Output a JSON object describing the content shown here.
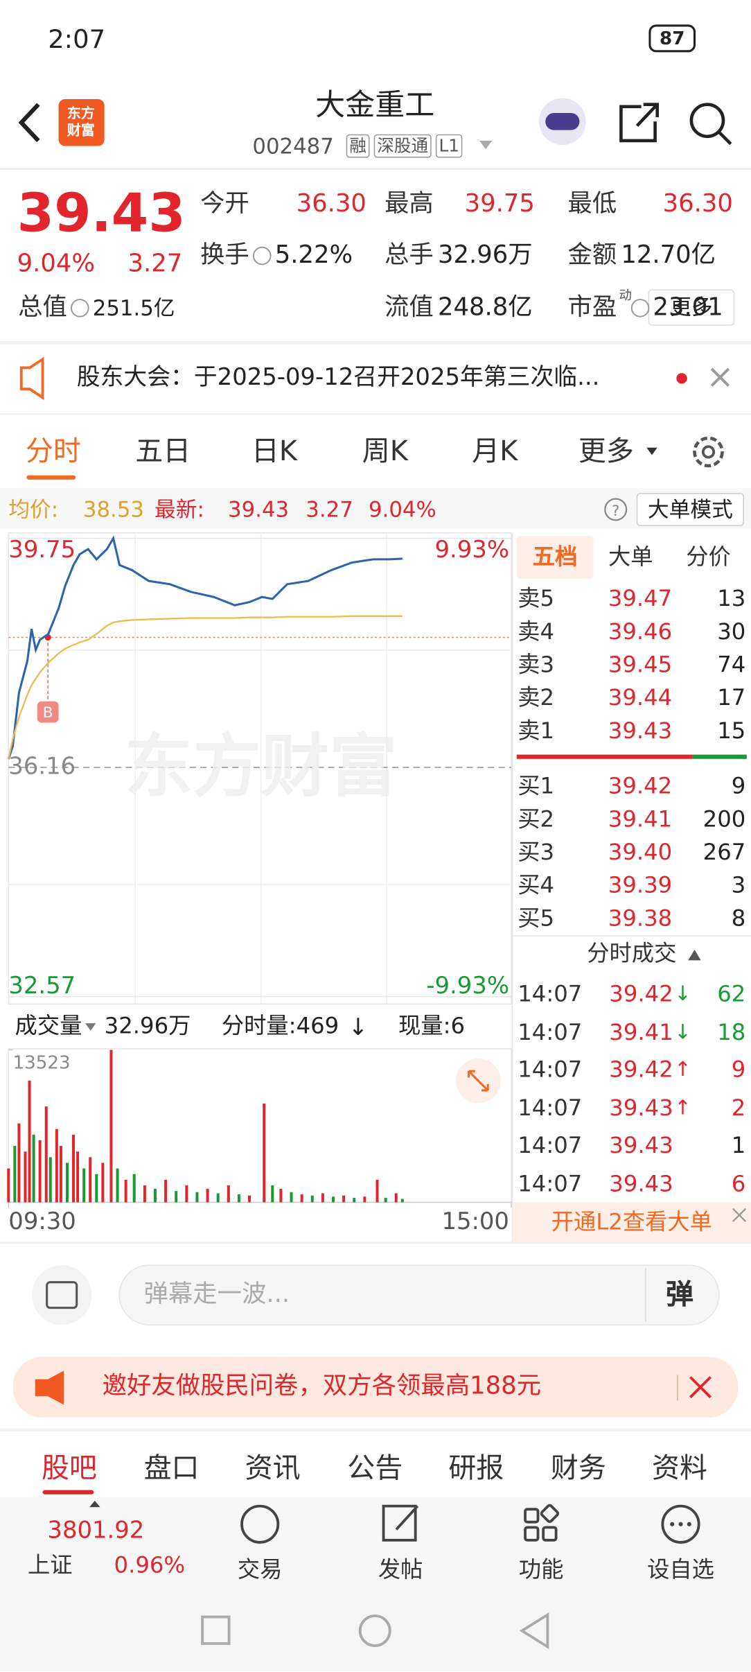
{
  "status_bar": {
    "time": "2:07",
    "battery": "87"
  },
  "header": {
    "logo": "东方财富",
    "title": "大金重工",
    "code": "002487",
    "badges": [
      "融",
      "深股通",
      "L1"
    ]
  },
  "quote": {
    "price": "39.43",
    "change_pct": "9.04%",
    "change": "3.27",
    "stats": [
      {
        "label": "今开",
        "value": "36.30"
      },
      {
        "label": "最高",
        "value": "39.75"
      },
      {
        "label": "最低",
        "value": "36.30"
      },
      {
        "label": "换手",
        "value": "5.22%"
      },
      {
        "label": "总手",
        "value": "32.96万"
      },
      {
        "label": "金额",
        "value": "12.70亿"
      },
      {
        "label": "总值",
        "value": "251.5亿"
      },
      {
        "label": "流值",
        "value": "248.8亿"
      },
      {
        "label": "市盈",
        "label_sup": "动",
        "value": "23.01"
      }
    ],
    "more": "更多"
  },
  "notice": {
    "text": "股东大会：于2025-09-12召开2025年第三次临..."
  },
  "tabs": [
    "分时",
    "五日",
    "日K",
    "周K",
    "月K",
    "更多"
  ],
  "info_bar": {
    "avg_label": "均价:",
    "avg": "38.53",
    "latest_label": "最新:",
    "latest": "39.43",
    "change": "3.27",
    "change_pct": "9.04%",
    "mode_button": "大单模式"
  },
  "watermark": "东方财富",
  "chart_data": [
    {
      "type": "line",
      "x": [
        0,
        2,
        5,
        9,
        11,
        13,
        15,
        19,
        24,
        27,
        31,
        34,
        38,
        42,
        47,
        50,
        53,
        59,
        67,
        77,
        87,
        98,
        108,
        115,
        121,
        126,
        133,
        143,
        154,
        164,
        174,
        182,
        188
      ],
      "xlim": [
        0,
        240
      ],
      "xticks": [
        {
          "value": 0,
          "label": "09:30"
        },
        {
          "value": 240,
          "label": "15:00"
        }
      ],
      "ylim": [
        32.57,
        39.75
      ],
      "yticks": [
        32.57,
        36.16,
        39.75
      ],
      "y2lim": [
        -9.93,
        9.93
      ],
      "y2ticks": [
        {
          "value": -9.93,
          "label": "-9.93%"
        },
        {
          "value": 9.93,
          "label": "9.93%"
        }
      ],
      "series": [
        {
          "color": "#2d64ad",
          "values": [
            36.29,
            36.49,
            37.33,
            37.83,
            38.33,
            38.0,
            38.16,
            38.25,
            38.66,
            39.0,
            39.33,
            39.5,
            39.58,
            39.42,
            39.58,
            39.75,
            39.33,
            39.25,
            39.08,
            39.03,
            38.91,
            38.83,
            38.7,
            38.75,
            38.83,
            38.8,
            39.03,
            39.08,
            39.25,
            39.37,
            39.42,
            39.42,
            39.43
          ]
        },
        {
          "color": "#eebb4d",
          "values": [
            36.29,
            36.6,
            36.95,
            37.3,
            37.45,
            37.55,
            37.65,
            37.8,
            37.95,
            38.02,
            38.08,
            38.12,
            38.16,
            38.25,
            38.38,
            38.43,
            38.45,
            38.47,
            38.48,
            38.49,
            38.5,
            38.5,
            38.5,
            38.51,
            38.51,
            38.51,
            38.52,
            38.52,
            38.52,
            38.53,
            38.53,
            38.53,
            38.53
          ]
        }
      ]
    },
    {
      "type": "bar",
      "x": [
        0,
        3,
        5,
        8,
        10,
        12,
        15,
        18,
        20,
        23,
        25,
        28,
        31,
        33,
        36,
        39,
        42,
        45,
        49,
        52,
        56,
        60,
        65,
        70,
        75,
        80,
        85,
        90,
        95,
        100,
        105,
        110,
        115,
        122,
        126,
        130,
        135,
        140,
        145,
        150,
        155,
        160,
        165,
        170,
        176,
        180,
        185,
        188
      ],
      "xlim": [
        0,
        240
      ],
      "ylim": [
        0,
        13523
      ],
      "yticks": [
        13523
      ],
      "values": [
        3000,
        5000,
        7000,
        4500,
        10800,
        6000,
        5500,
        8500,
        4000,
        6500,
        5000,
        3500,
        6000,
        4500,
        3000,
        4000,
        2500,
        3500,
        13523,
        3000,
        2000,
        2500,
        1500,
        1200,
        2000,
        1000,
        1500,
        900,
        1200,
        800,
        1500,
        700,
        600,
        8760,
        1500,
        1200,
        900,
        700,
        600,
        800,
        500,
        600,
        400,
        500,
        2000,
        400,
        800,
        300
      ],
      "colors": [
        "#e0262c",
        "#1a9a35",
        "#e0262c",
        "#e0262c",
        "#e0262c",
        "#1a9a35",
        "#e0262c",
        "#e0262c",
        "#1a9a35",
        "#e0262c",
        "#e0262c",
        "#1a9a35",
        "#e0262c",
        "#e0262c",
        "#1a9a35",
        "#e0262c",
        "#1a9a35",
        "#e0262c",
        "#e0262c",
        "#1a9a35",
        "#e0262c",
        "#1a9a35",
        "#e0262c",
        "#1a9a35",
        "#e0262c",
        "#1a9a35",
        "#e0262c",
        "#1a9a35",
        "#e0262c",
        "#1a9a35",
        "#e0262c",
        "#1a9a35",
        "#e0262c",
        "#e0262c",
        "#1a9a35",
        "#e0262c",
        "#1a9a35",
        "#e0262c",
        "#1a9a35",
        "#e0262c",
        "#1a9a35",
        "#e0262c",
        "#1a9a35",
        "#e0262c",
        "#e0262c",
        "#1a9a35",
        "#e0262c",
        "#1a9a35"
      ]
    }
  ],
  "volume_header": {
    "label": "成交量",
    "total": "32.96万",
    "minute": "分时量:469",
    "current": "现量:6"
  },
  "order_book": {
    "tabs": [
      "五档",
      "大单",
      "分价"
    ],
    "asks": [
      {
        "label": "卖5",
        "price": "39.47",
        "qty": "13"
      },
      {
        "label": "卖4",
        "price": "39.46",
        "qty": "30"
      },
      {
        "label": "卖3",
        "price": "39.45",
        "qty": "74"
      },
      {
        "label": "卖2",
        "price": "39.44",
        "qty": "17"
      },
      {
        "label": "卖1",
        "price": "39.43",
        "qty": "15"
      }
    ],
    "bids": [
      {
        "label": "买1",
        "price": "39.42",
        "qty": "9"
      },
      {
        "label": "买2",
        "price": "39.41",
        "qty": "200"
      },
      {
        "label": "买3",
        "price": "39.40",
        "qty": "267"
      },
      {
        "label": "买4",
        "price": "39.39",
        "qty": "3"
      },
      {
        "label": "买5",
        "price": "39.38",
        "qty": "8"
      }
    ]
  },
  "trades": {
    "title": "分时成交",
    "rows": [
      {
        "time": "14:07",
        "price": "39.42",
        "arrow": "↓",
        "qty": "62"
      },
      {
        "time": "14:07",
        "price": "39.41",
        "arrow": "↓",
        "qty": "18"
      },
      {
        "time": "14:07",
        "price": "39.42",
        "arrow": "↑",
        "qty": "9"
      },
      {
        "time": "14:07",
        "price": "39.43",
        "arrow": "↑",
        "qty": "2"
      },
      {
        "time": "14:07",
        "price": "39.43",
        "qty": "1"
      },
      {
        "time": "14:07",
        "price": "39.43",
        "qty": "6"
      }
    ]
  },
  "l2_banner": "开通L2查看大单",
  "danmaku": {
    "placeholder": "弹幕走一波...",
    "button": "弹"
  },
  "promo": "邀好友做股民问卷，双方各领最高188元",
  "sub_tabs": [
    "股吧",
    "盘口",
    "资讯",
    "公告",
    "研报",
    "财务",
    "资料"
  ],
  "bottom_nav": {
    "index": {
      "value": "3801.92",
      "name": "上证",
      "pct": "0.96%"
    },
    "items": [
      "交易",
      "发帖",
      "功能",
      "设自选"
    ]
  }
}
